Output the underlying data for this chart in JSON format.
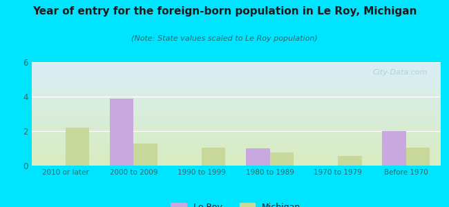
{
  "title": "Year of entry for the foreign-born population in Le Roy, Michigan",
  "subtitle": "(Note: State values scaled to Le Roy population)",
  "categories": [
    "2010 or later",
    "2000 to 2009",
    "1990 to 1999",
    "1980 to 1989",
    "1970 to 1979",
    "Before 1970"
  ],
  "leroy_values": [
    0,
    3.9,
    0,
    1.0,
    0,
    2.0
  ],
  "michigan_values": [
    2.2,
    1.3,
    1.05,
    0.75,
    0.55,
    1.05
  ],
  "leroy_color": "#c9a8e0",
  "michigan_color": "#c8d89a",
  "background_outer": "#00e5ff",
  "background_plot_top": "#daeef8",
  "background_plot_bottom": "#d8ecc0",
  "ylim": [
    0,
    6
  ],
  "yticks": [
    0,
    2,
    4,
    6
  ],
  "bar_width": 0.35,
  "legend_labels": [
    "Le Roy",
    "Michigan"
  ],
  "watermark": "City-Data.com"
}
